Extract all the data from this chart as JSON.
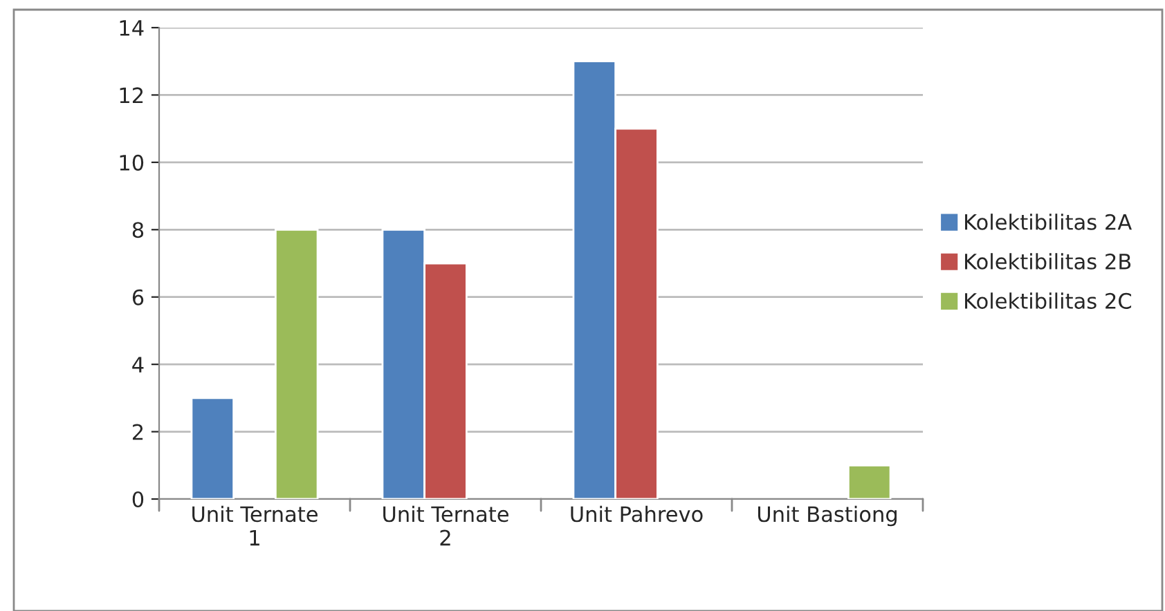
{
  "chart_data": {
    "type": "bar",
    "categories": [
      "Unit Ternate 1",
      "Unit Ternate 2",
      "Unit Pahrevo",
      "Unit Bastiong"
    ],
    "series": [
      {
        "name": "Kolektibilitas 2A",
        "color": "#4f81bd",
        "values": [
          3,
          8,
          13,
          null
        ]
      },
      {
        "name": "Kolektibilitas 2B",
        "color": "#c0504d",
        "values": [
          null,
          7,
          11,
          null
        ]
      },
      {
        "name": "Kolektibilitas 2C",
        "color": "#9bbb59",
        "values": [
          8,
          null,
          null,
          1
        ]
      }
    ],
    "ylim": [
      0,
      14
    ],
    "yticks": [
      0,
      2,
      4,
      6,
      8,
      10,
      12,
      14
    ],
    "grid": "y",
    "legend": "right"
  }
}
